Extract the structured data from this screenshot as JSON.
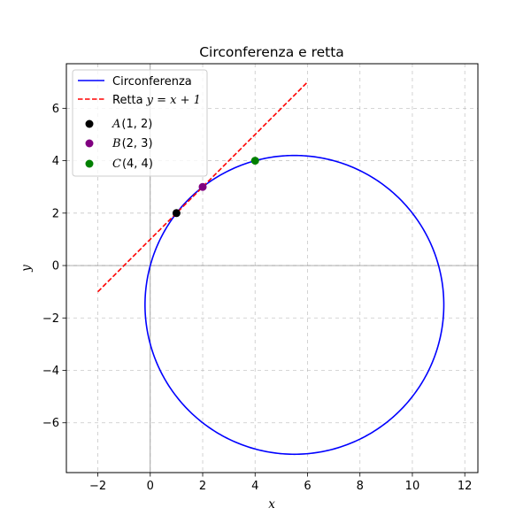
{
  "chart_data": {
    "type": "line",
    "title": "Circonferenza e retta",
    "xlabel": "x",
    "ylabel": "y",
    "xlim": [
      -3.2,
      12.5
    ],
    "ylim": [
      -7.9,
      7.7
    ],
    "xticks": [
      -2,
      0,
      2,
      4,
      6,
      8,
      10,
      12
    ],
    "yticks": [
      -6,
      -4,
      -2,
      0,
      2,
      4,
      6
    ],
    "grid": true,
    "grid_style": "dashed",
    "reference_lines": {
      "x": 0,
      "y": 0
    },
    "legend_position": "top-left",
    "circle": {
      "name": "Circonferenza",
      "center": [
        5.5,
        -1.5
      ],
      "radius": 5.7,
      "color": "#0000ff",
      "style": "solid"
    },
    "line": {
      "name": "Retta",
      "equation": "y = x + 1",
      "x": [
        -2,
        6
      ],
      "y": [
        -1,
        7
      ],
      "color": "#ff0000",
      "style": "dashed"
    },
    "points": [
      {
        "name": "A",
        "coords": "(1, 2)",
        "x": 1,
        "y": 2,
        "color": "#000000"
      },
      {
        "name": "B",
        "coords": "(2, 3)",
        "x": 2,
        "y": 3,
        "color": "#800080"
      },
      {
        "name": "C",
        "coords": "(4, 4)",
        "x": 4,
        "y": 4,
        "color": "#008000"
      }
    ]
  }
}
